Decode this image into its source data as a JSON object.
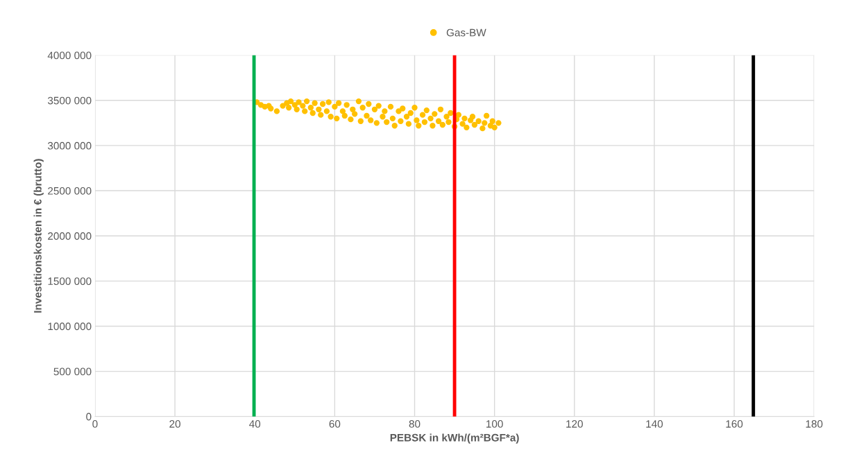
{
  "chart_data": {
    "type": "scatter",
    "xlabel": "PEBSK in kWh/(m²BGF*a)",
    "ylabel": "Investitionskosten in € (brutto)",
    "xlim": [
      0,
      180
    ],
    "xticks": [
      0,
      20,
      40,
      60,
      80,
      100,
      120,
      140,
      160,
      180
    ],
    "ylim": [
      0,
      4000000
    ],
    "yticks": [
      {
        "value": 0,
        "label": "0"
      },
      {
        "value": 500000,
        "label": "500 000"
      },
      {
        "value": 1000000,
        "label": "1000 000"
      },
      {
        "value": 1500000,
        "label": "1500 000"
      },
      {
        "value": 2000000,
        "label": "2000 000"
      },
      {
        "value": 2500000,
        "label": "2500 000"
      },
      {
        "value": 3000000,
        "label": "3000 000"
      },
      {
        "value": 3500000,
        "label": "3500 000"
      },
      {
        "value": 4000000,
        "label": "4000 000"
      }
    ],
    "grid": true,
    "legend": "top",
    "marker": "circle",
    "series": [
      {
        "name": "Gas-BW",
        "color": "#ffc000",
        "x": [
          40.5,
          41.5,
          42.5,
          43.5,
          44,
          45.5,
          47,
          48,
          48.5,
          49,
          50,
          50.5,
          51,
          52,
          52.5,
          53,
          54,
          54.5,
          55,
          56,
          56.5,
          57,
          58,
          58.5,
          59,
          60,
          60.5,
          61,
          62,
          62.5,
          63,
          64,
          64.5,
          65,
          66,
          66.5,
          67,
          68,
          68.5,
          69,
          70,
          70.5,
          71,
          72,
          72.5,
          73,
          74,
          74.5,
          75,
          76,
          76.5,
          77,
          78,
          78.5,
          79,
          80,
          80.5,
          81,
          82,
          82.5,
          83,
          84,
          84.5,
          85,
          86,
          86.5,
          87,
          88,
          88.5,
          89,
          90,
          90.5,
          91,
          92,
          92.5,
          93,
          94,
          94.5,
          95,
          96,
          97,
          97.5,
          98,
          99,
          99.5,
          100,
          101
        ],
        "values": [
          3480000,
          3450000,
          3430000,
          3440000,
          3410000,
          3380000,
          3440000,
          3470000,
          3420000,
          3490000,
          3450000,
          3400000,
          3480000,
          3440000,
          3380000,
          3490000,
          3420000,
          3360000,
          3470000,
          3400000,
          3340000,
          3460000,
          3380000,
          3480000,
          3320000,
          3430000,
          3300000,
          3470000,
          3380000,
          3330000,
          3450000,
          3290000,
          3400000,
          3350000,
          3490000,
          3270000,
          3420000,
          3330000,
          3460000,
          3280000,
          3400000,
          3250000,
          3440000,
          3320000,
          3380000,
          3260000,
          3430000,
          3300000,
          3220000,
          3380000,
          3270000,
          3410000,
          3320000,
          3240000,
          3360000,
          3420000,
          3280000,
          3220000,
          3340000,
          3260000,
          3390000,
          3300000,
          3220000,
          3350000,
          3270000,
          3400000,
          3230000,
          3320000,
          3260000,
          3360000,
          3210000,
          3290000,
          3340000,
          3240000,
          3300000,
          3200000,
          3280000,
          3320000,
          3230000,
          3270000,
          3190000,
          3250000,
          3330000,
          3220000,
          3270000,
          3200000,
          3250000
        ]
      }
    ],
    "ref_lines": [
      {
        "axis": "x",
        "value": 39.8,
        "color": "#00b050"
      },
      {
        "axis": "x",
        "value": 90,
        "color": "#ff0000"
      },
      {
        "axis": "x",
        "value": 164.8,
        "color": "#000000"
      }
    ]
  }
}
